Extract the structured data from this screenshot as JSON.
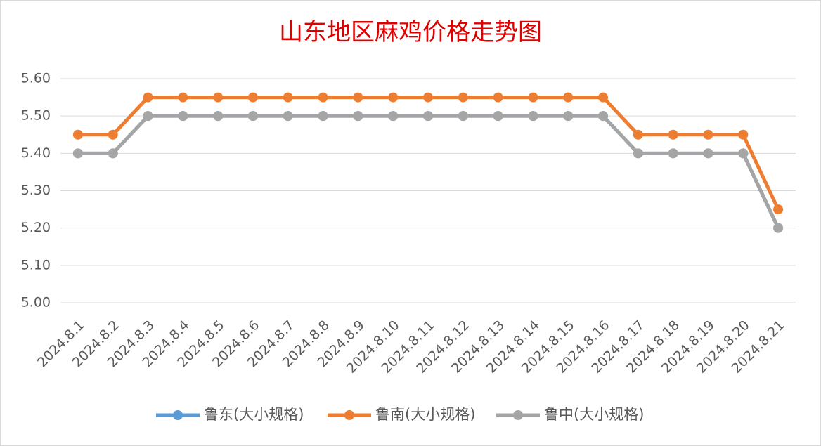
{
  "chart_data": {
    "type": "line",
    "title": "山东地区麻鸡价格走势图",
    "categories": [
      "2024.8.1",
      "2024.8.2",
      "2024.8.3",
      "2024.8.4",
      "2024.8.5",
      "2024.8.6",
      "2024.8.7",
      "2024.8.8",
      "2024.8.9",
      "2024.8.10",
      "2024.8.11",
      "2024.8.12",
      "2024.8.13",
      "2024.8.14",
      "2024.8.15",
      "2024.8.16",
      "2024.8.17",
      "2024.8.18",
      "2024.8.19",
      "2024.8.20",
      "2024.8.21"
    ],
    "series": [
      {
        "name": "鲁东(大小规格)",
        "color": "#5b9bd5",
        "values": [
          5.4,
          5.4,
          5.5,
          5.5,
          5.5,
          5.5,
          5.5,
          5.5,
          5.5,
          5.5,
          5.5,
          5.5,
          5.5,
          5.5,
          5.5,
          5.5,
          5.4,
          5.4,
          5.4,
          5.4,
          5.2
        ]
      },
      {
        "name": "鲁南(大小规格)",
        "color": "#ed7d31",
        "values": [
          5.45,
          5.45,
          5.55,
          5.55,
          5.55,
          5.55,
          5.55,
          5.55,
          5.55,
          5.55,
          5.55,
          5.55,
          5.55,
          5.55,
          5.55,
          5.55,
          5.45,
          5.45,
          5.45,
          5.45,
          5.25
        ]
      },
      {
        "name": "鲁中(大小规格)",
        "color": "#a5a5a5",
        "values": [
          5.4,
          5.4,
          5.5,
          5.5,
          5.5,
          5.5,
          5.5,
          5.5,
          5.5,
          5.5,
          5.5,
          5.5,
          5.5,
          5.5,
          5.5,
          5.5,
          5.4,
          5.4,
          5.4,
          5.4,
          5.2
        ]
      }
    ],
    "ylim": [
      5.0,
      5.6
    ],
    "yticks": [
      {
        "value": 5.0,
        "label": "5.00"
      },
      {
        "value": 5.1,
        "label": "5.10"
      },
      {
        "value": 5.2,
        "label": "5.20"
      },
      {
        "value": 5.3,
        "label": "5.30"
      },
      {
        "value": 5.4,
        "label": "5.40"
      },
      {
        "value": 5.5,
        "label": "5.50"
      },
      {
        "value": 5.6,
        "label": "5.60"
      }
    ],
    "grid": true,
    "legend": "bottom"
  }
}
